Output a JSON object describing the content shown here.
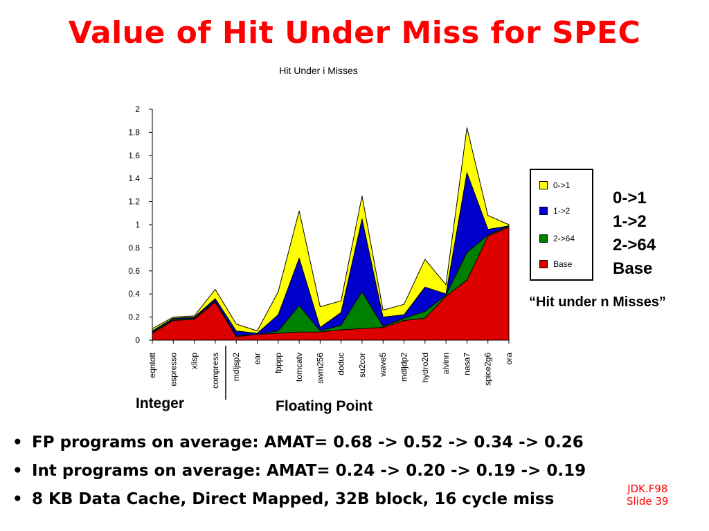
{
  "slide": {
    "title": "Value of Hit Under Miss for SPEC",
    "side_legend": [
      "0->1",
      "1->2",
      "2->64",
      "Base"
    ],
    "side_caption": "“Hit under n Misses”",
    "group_integer": "Integer",
    "group_fp": "Floating Point",
    "bullets": [
      "FP programs on average: AMAT= 0.68 -> 0.52 -> 0.34 -> 0.26",
      "Int programs on average: AMAT= 0.24 -> 0.20 -> 0.19 -> 0.19",
      "8 KB Data Cache, Direct Mapped, 32B block, 16 cycle miss"
    ],
    "bullet_glyph": "•",
    "footer": [
      "JDK.F98",
      "Slide 39"
    ]
  },
  "chart_data": {
    "type": "area",
    "title": "Hit Under i Misses",
    "xlabel": "",
    "ylabel": "",
    "ylim": [
      0,
      2
    ],
    "yticks": [
      0,
      0.2,
      0.4,
      0.6,
      0.8,
      1,
      1.2,
      1.4,
      1.6,
      1.8,
      2
    ],
    "ytick_labels": [
      "0",
      "0.2",
      "0.4",
      "0.6",
      "0.8",
      "1",
      "1.2",
      "1.4",
      "1.6",
      "1.8",
      "2"
    ],
    "categories": [
      "eqntott",
      "espresso",
      "xlisp",
      "compress",
      "mdljsp2",
      "ear",
      "fpppp",
      "tomcatv",
      "swm256",
      "doduc",
      "su2cor",
      "wave5",
      "mdljdp2",
      "hydro2d",
      "alvinn",
      "nasa7",
      "spice2g6",
      "ora"
    ],
    "legend_placement": "right",
    "series": [
      {
        "name": "Base",
        "color": "#dd0000",
        "values": [
          0.06,
          0.17,
          0.18,
          0.33,
          0.03,
          0.05,
          0.06,
          0.07,
          0.07,
          0.09,
          0.1,
          0.11,
          0.17,
          0.19,
          0.38,
          0.52,
          0.9,
          0.98
        ]
      },
      {
        "name": "2->64",
        "color": "#008000",
        "values": [
          0.07,
          0.18,
          0.19,
          0.34,
          0.04,
          0.05,
          0.08,
          0.3,
          0.08,
          0.13,
          0.42,
          0.12,
          0.19,
          0.25,
          0.39,
          0.76,
          0.91,
          0.99
        ]
      },
      {
        "name": "1->2",
        "color": "#0000cc",
        "values": [
          0.08,
          0.19,
          0.2,
          0.36,
          0.08,
          0.06,
          0.22,
          0.71,
          0.11,
          0.24,
          1.05,
          0.2,
          0.22,
          0.46,
          0.4,
          1.45,
          0.96,
          0.99
        ]
      },
      {
        "name": "0->1",
        "color": "#ffff00",
        "values": [
          0.1,
          0.2,
          0.21,
          0.44,
          0.14,
          0.08,
          0.42,
          1.12,
          0.29,
          0.34,
          1.25,
          0.26,
          0.31,
          0.7,
          0.48,
          1.84,
          1.08,
          1.0
        ]
      }
    ],
    "legend": [
      {
        "label": "0->1",
        "color": "#ffff00"
      },
      {
        "label": "1->2",
        "color": "#0000cc"
      },
      {
        "label": "2->64",
        "color": "#008000"
      },
      {
        "label": "Base",
        "color": "#dd0000"
      }
    ]
  }
}
